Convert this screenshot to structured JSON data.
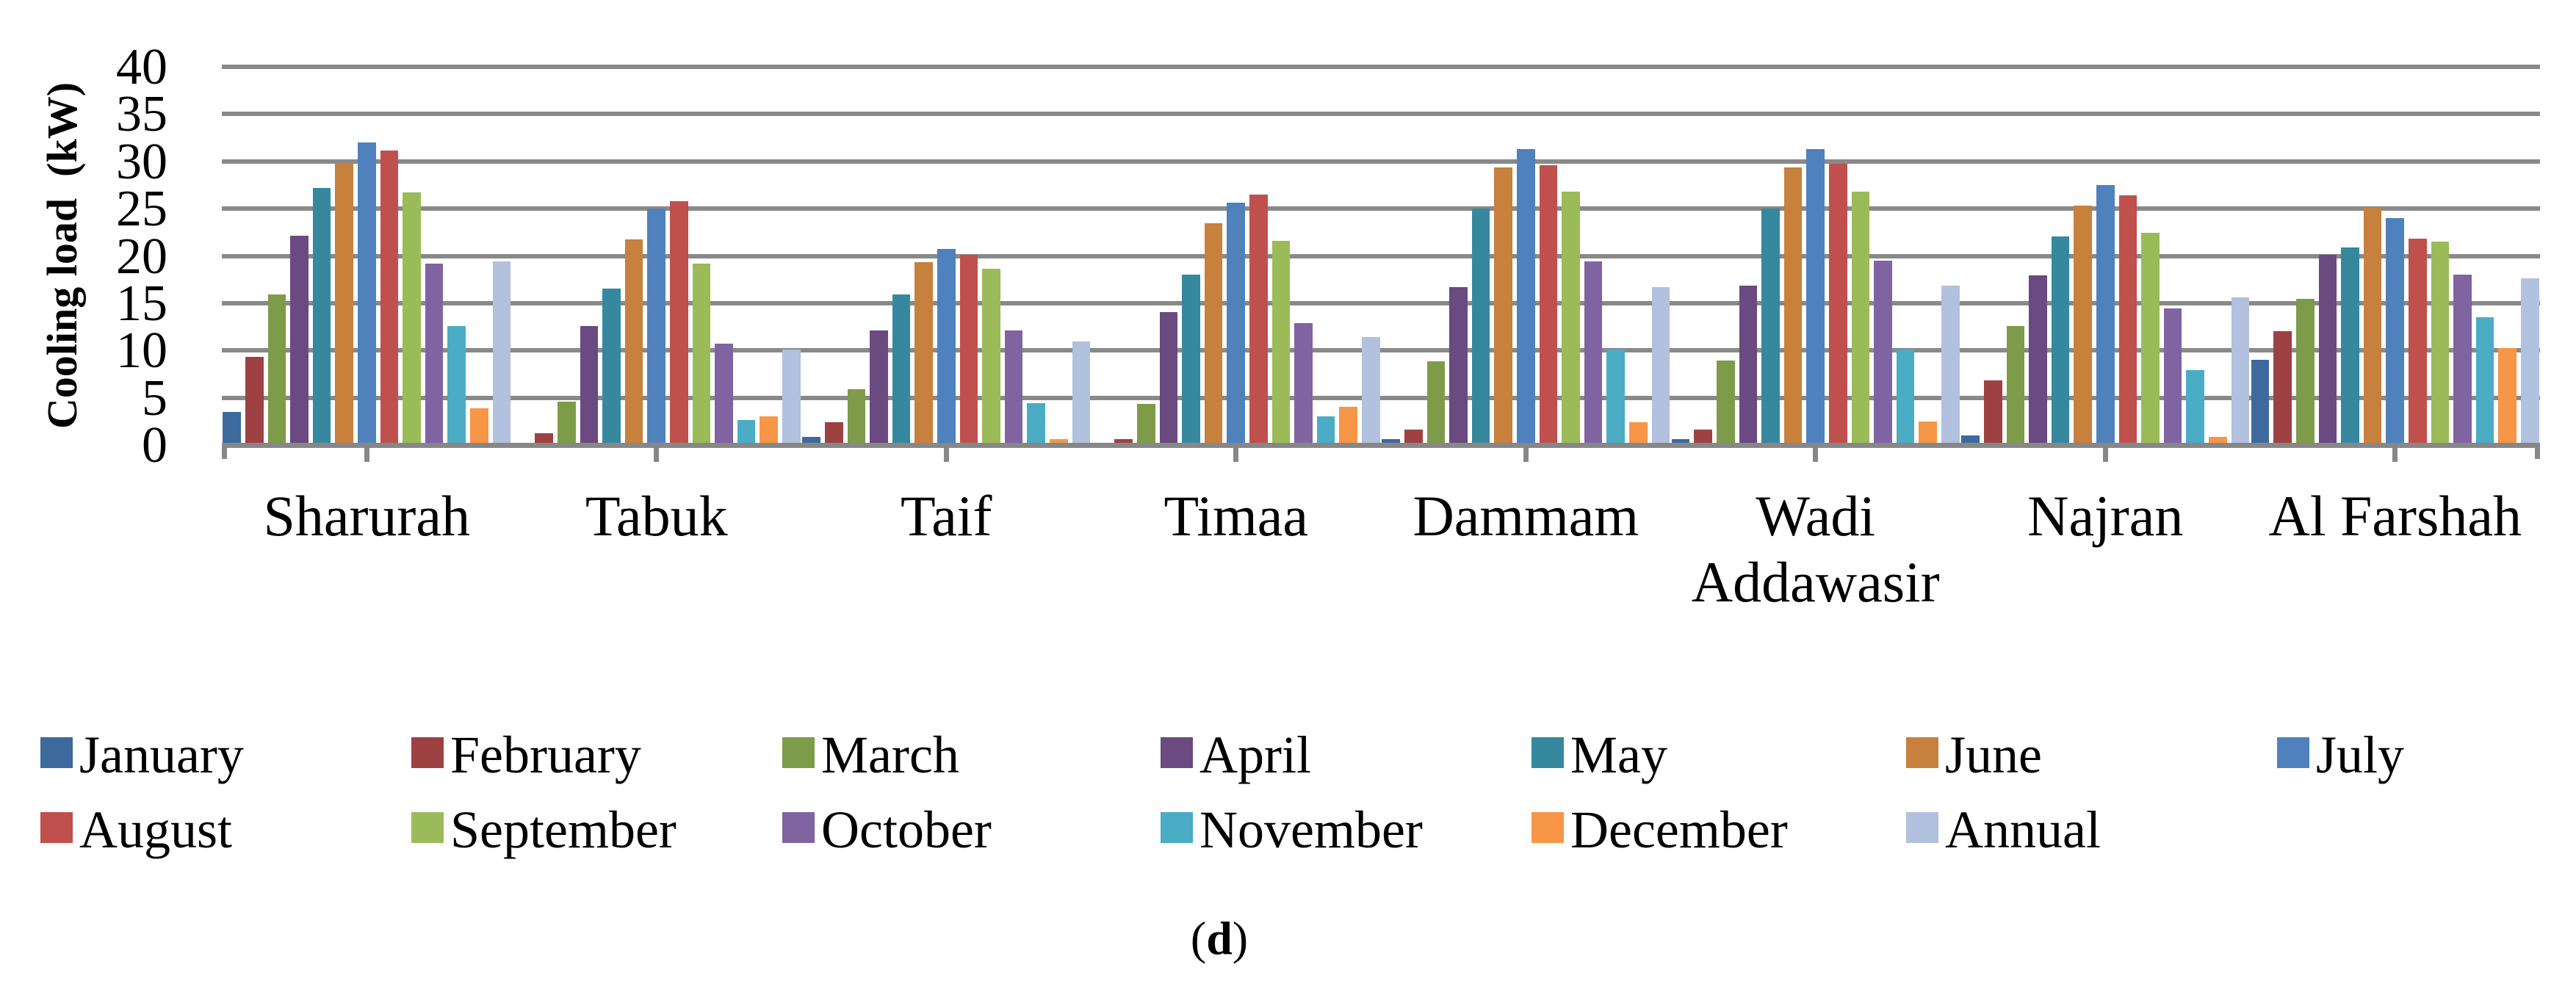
{
  "figure": {
    "caption_prefix": "(",
    "caption_letter": "d",
    "caption_suffix": ")"
  },
  "chart_data": {
    "type": "bar",
    "title": "",
    "xlabel": "",
    "ylabel": "Cooling load  (kW)",
    "ylim": [
      0,
      40
    ],
    "ytick_step": 5,
    "yticks": [
      0,
      5,
      10,
      15,
      20,
      25,
      30,
      35,
      40
    ],
    "grid": true,
    "gridline_color": "#898989",
    "legend_position": "bottom",
    "categories": [
      "Sharurah",
      "Tabuk",
      "Taif",
      "Timaa",
      "Dammam",
      "Wadi Addawasir",
      "Najran",
      "Al Farshah"
    ],
    "series": [
      {
        "name": "January",
        "color": "#3D6A9D",
        "values": [
          3.6,
          0.0,
          0.9,
          0.0,
          0.7,
          0.7,
          1.1,
          9.1
        ]
      },
      {
        "name": "February",
        "color": "#9E4143",
        "values": [
          9.4,
          1.3,
          2.5,
          0.7,
          1.7,
          1.7,
          6.9,
          12.1
        ]
      },
      {
        "name": "March",
        "color": "#7D9B49",
        "values": [
          16.0,
          4.7,
          6.0,
          4.4,
          8.9,
          9.0,
          12.7,
          15.5
        ]
      },
      {
        "name": "April",
        "color": "#6A4A80",
        "values": [
          22.2,
          12.7,
          12.2,
          14.1,
          16.8,
          16.9,
          18.0,
          20.2
        ]
      },
      {
        "name": "May",
        "color": "#35889E",
        "values": [
          27.3,
          16.6,
          16.0,
          18.1,
          25.1,
          25.1,
          22.1,
          21.0
        ]
      },
      {
        "name": "June",
        "color": "#C8803D",
        "values": [
          29.9,
          21.8,
          19.4,
          23.5,
          29.4,
          29.4,
          25.4,
          25.2
        ]
      },
      {
        "name": "July",
        "color": "#4F81BD",
        "values": [
          32.1,
          25.1,
          20.8,
          25.7,
          31.4,
          31.4,
          27.6,
          24.1
        ]
      },
      {
        "name": "August",
        "color": "#C0504D",
        "values": [
          31.2,
          25.9,
          20.2,
          26.6,
          29.7,
          29.8,
          26.5,
          21.9
        ]
      },
      {
        "name": "September",
        "color": "#9BBB59",
        "values": [
          26.8,
          19.3,
          18.7,
          21.7,
          26.9,
          26.9,
          22.5,
          21.6
        ]
      },
      {
        "name": "October",
        "color": "#8064A2",
        "values": [
          19.3,
          10.8,
          12.2,
          13.0,
          19.5,
          19.6,
          14.5,
          18.1
        ]
      },
      {
        "name": "November",
        "color": "#4BACC6",
        "values": [
          12.7,
          2.7,
          4.5,
          3.1,
          10.2,
          10.2,
          8.0,
          13.6
        ]
      },
      {
        "name": "December",
        "color": "#F79646",
        "values": [
          4.0,
          3.1,
          0.7,
          4.1,
          2.5,
          2.6,
          0.9,
          10.3
        ]
      },
      {
        "name": "Annual",
        "color": "#B1C1DE",
        "values": [
          19.5,
          10.2,
          11.0,
          11.5,
          16.8,
          16.9,
          15.7,
          17.7
        ]
      }
    ]
  }
}
